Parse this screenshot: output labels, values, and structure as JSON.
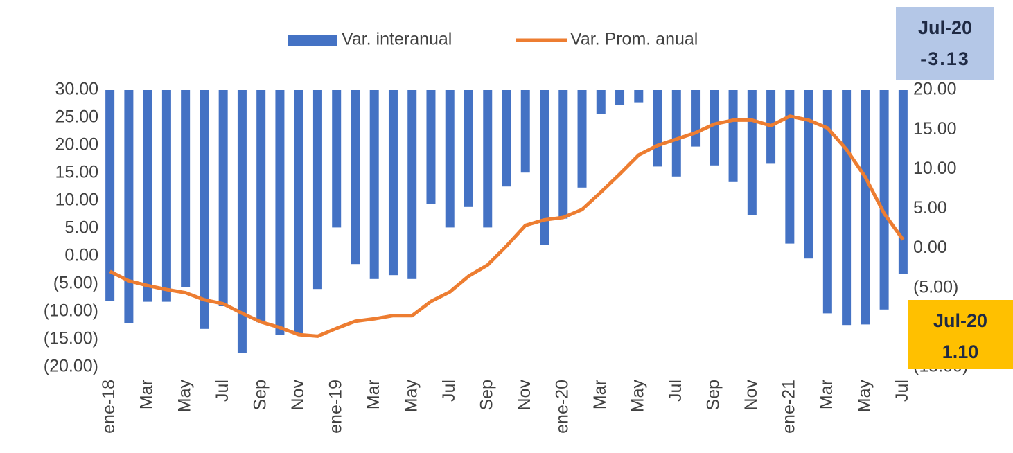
{
  "chart_data": {
    "type": "bar-line",
    "categories": [
      "ene-18",
      null,
      "Mar",
      null,
      "May",
      null,
      "Jul",
      null,
      "Sep",
      null,
      "Nov",
      null,
      "ene-19",
      null,
      "Mar",
      null,
      "May",
      null,
      "Jul",
      null,
      "Sep",
      null,
      "Nov",
      null,
      "ene-20",
      null,
      "Mar",
      null,
      "May",
      null,
      "Jul",
      null,
      "Sep",
      null,
      "Nov",
      null,
      "ene-21",
      null,
      "Mar",
      null,
      "May",
      null,
      "Jul"
    ],
    "series": [
      {
        "name": "Var. interanual",
        "type": "bar",
        "axis": "y",
        "color": "#4472c4",
        "values": [
          -8.0,
          -12.0,
          -8.2,
          -8.2,
          -5.5,
          -13.1,
          -9.0,
          -17.5,
          -11.9,
          -14.2,
          -13.9,
          -5.9,
          5.2,
          -1.4,
          -4.1,
          -3.4,
          -4.1,
          9.4,
          5.2,
          8.9,
          5.2,
          12.6,
          15.1,
          2.0,
          6.8,
          12.4,
          25.7,
          27.3,
          27.8,
          16.2,
          14.4,
          19.8,
          16.4,
          13.4,
          7.4,
          16.7,
          2.3,
          -0.4,
          -10.3,
          -12.4,
          -12.3,
          -9.6,
          -3.13
        ]
      },
      {
        "name": "Var. Prom. anual",
        "type": "line",
        "axis": "y2",
        "color": "#ed7d31",
        "values": [
          -2.9,
          -4.1,
          -4.7,
          -5.2,
          -5.6,
          -6.5,
          -7.0,
          -8.2,
          -9.3,
          -10.0,
          -10.9,
          -11.1,
          -10.1,
          -9.2,
          -8.9,
          -8.5,
          -8.5,
          -6.7,
          -5.5,
          -3.5,
          -2.1,
          0.3,
          2.9,
          3.6,
          3.9,
          4.9,
          7.1,
          9.4,
          11.8,
          13.0,
          13.8,
          14.6,
          15.7,
          16.2,
          16.2,
          15.5,
          16.7,
          16.2,
          15.2,
          12.5,
          9.0,
          4.4,
          1.1
        ]
      }
    ],
    "ylim": [
      -20,
      30
    ],
    "yticks": [
      {
        "value": 30,
        "label": "30.00"
      },
      {
        "value": 25,
        "label": "25.00"
      },
      {
        "value": 20,
        "label": "20.00"
      },
      {
        "value": 15,
        "label": "15.00"
      },
      {
        "value": 10,
        "label": "10.00"
      },
      {
        "value": 5,
        "label": "5.00"
      },
      {
        "value": 0,
        "label": "0.00"
      },
      {
        "value": -5,
        "label": "(5.00)"
      },
      {
        "value": -10,
        "label": "(10.00)"
      },
      {
        "value": -15,
        "label": "(15.00)"
      },
      {
        "value": -20,
        "label": "(20.00)"
      }
    ],
    "y2lim": [
      -15,
      20
    ],
    "y2ticks": [
      {
        "value": 20,
        "label": "20.00"
      },
      {
        "value": 15,
        "label": "15.00"
      },
      {
        "value": 10,
        "label": "10.00"
      },
      {
        "value": 5,
        "label": "5.00"
      },
      {
        "value": 0,
        "label": "0.00"
      },
      {
        "value": -5,
        "label": "(5.00)"
      },
      {
        "value": -10,
        "label": "(10.00)"
      },
      {
        "value": -15,
        "label": "(15.00)"
      }
    ],
    "legend": "top",
    "annotations": [
      {
        "title": "Jul-20",
        "text": "-3.13",
        "color": "#b4c7e7"
      },
      {
        "title": "Jul-20",
        "text": "1.10",
        "color": "#ffc000"
      }
    ]
  }
}
